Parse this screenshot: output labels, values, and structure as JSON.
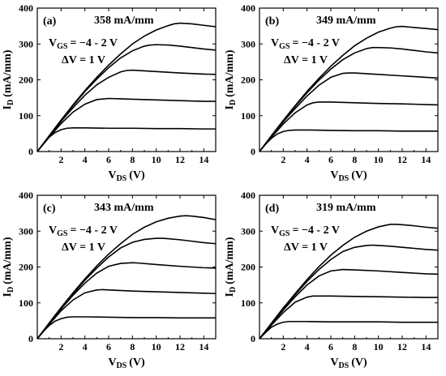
{
  "chart_data": [
    {
      "type": "line",
      "label": "(a)",
      "peak_label": "358 mA/mm",
      "vgs_label": "−4 - 2 V",
      "dv_label": "ΔV = 1 V",
      "xlabel_main": "V",
      "xlabel_sub": "DS",
      "xlabel_unit": "(V)",
      "ylabel_main": "I",
      "ylabel_sub": "D",
      "ylabel_unit": "(mA/mm)",
      "xlim": [
        0,
        15
      ],
      "ylim": [
        0,
        400
      ],
      "xticks": [
        "2",
        "4",
        "6",
        "8",
        "10",
        "12",
        "14"
      ],
      "yticks": [
        "0",
        "100",
        "200",
        "300",
        "400"
      ],
      "series": [
        {
          "x": [
            0,
            0.5,
            1,
            1.5,
            2,
            2.5,
            3,
            4,
            6,
            8,
            10,
            12,
            14,
            15
          ],
          "values": [
            0,
            22,
            40,
            53,
            61,
            65,
            66,
            66,
            65,
            65,
            64,
            64,
            63,
            63
          ]
        },
        {
          "x": [
            0,
            1,
            2,
            3,
            4,
            5,
            6,
            7,
            8,
            10,
            12,
            14,
            15
          ],
          "values": [
            0,
            40,
            78,
            110,
            132,
            145,
            148,
            147,
            146,
            144,
            142,
            140,
            140
          ]
        },
        {
          "x": [
            0,
            1,
            2,
            3,
            4,
            5,
            6,
            7,
            7.5,
            8,
            9,
            10,
            12,
            14,
            15
          ],
          "values": [
            0,
            42,
            84,
            122,
            157,
            186,
            207,
            222,
            226,
            227,
            225,
            223,
            219,
            216,
            215
          ]
        },
        {
          "x": [
            0,
            1,
            2,
            3,
            4,
            5,
            6,
            7,
            8,
            9,
            9.5,
            10,
            11,
            12,
            13,
            14,
            15
          ],
          "values": [
            0,
            43,
            87,
            128,
            167,
            202,
            234,
            261,
            281,
            294,
            297,
            298,
            297,
            294,
            290,
            286,
            283
          ]
        },
        {
          "x": [
            0,
            1,
            2,
            3,
            4,
            5,
            6,
            7,
            8,
            9,
            10,
            11,
            11.5,
            12,
            13,
            14,
            15
          ],
          "values": [
            0,
            44,
            88,
            130,
            170,
            207,
            241,
            272,
            300,
            322,
            339,
            351,
            356,
            358,
            356,
            352,
            348
          ]
        }
      ]
    },
    {
      "type": "line",
      "label": "(b)",
      "peak_label": "349 mA/mm",
      "vgs_label": "−4 - 2 V",
      "dv_label": "ΔV = 1 V",
      "xlabel_main": "V",
      "xlabel_sub": "DS",
      "xlabel_unit": "(V)",
      "ylabel_main": "I",
      "ylabel_sub": "D",
      "ylabel_unit": "(mA/mm)",
      "xlim": [
        0,
        15
      ],
      "ylim": [
        0,
        400
      ],
      "xticks": [
        "2",
        "4",
        "6",
        "8",
        "10",
        "12",
        "14"
      ],
      "yticks": [
        "0",
        "100",
        "200",
        "300",
        "400"
      ],
      "series": [
        {
          "x": [
            0,
            0.5,
            1,
            1.5,
            2,
            2.5,
            3,
            4,
            6,
            8,
            10,
            12,
            14,
            15
          ],
          "values": [
            0,
            20,
            37,
            49,
            56,
            59,
            60,
            60,
            59,
            58,
            58,
            57,
            57,
            57
          ]
        },
        {
          "x": [
            0,
            1,
            2,
            3,
            4,
            4.5,
            5,
            6,
            8,
            10,
            12,
            14,
            15
          ],
          "values": [
            0,
            40,
            77,
            108,
            130,
            136,
            138,
            138,
            136,
            134,
            133,
            131,
            130
          ]
        },
        {
          "x": [
            0,
            1,
            2,
            3,
            4,
            5,
            6,
            7,
            7.5,
            8,
            10,
            12,
            14,
            15
          ],
          "values": [
            0,
            42,
            83,
            120,
            155,
            185,
            207,
            218,
            219,
            219,
            215,
            211,
            207,
            205
          ]
        },
        {
          "x": [
            0,
            1,
            2,
            3,
            4,
            5,
            6,
            7,
            8,
            9,
            9.5,
            10,
            11,
            12,
            13,
            14,
            15
          ],
          "values": [
            0,
            43,
            86,
            126,
            164,
            199,
            230,
            256,
            275,
            287,
            290,
            290,
            289,
            286,
            282,
            278,
            275
          ]
        },
        {
          "x": [
            0,
            1,
            2,
            3,
            4,
            5,
            6,
            7,
            8,
            9,
            10,
            11,
            11.5,
            12,
            13,
            14,
            15
          ],
          "values": [
            0,
            44,
            87,
            128,
            168,
            204,
            238,
            268,
            295,
            316,
            333,
            344,
            348,
            349,
            346,
            343,
            340
          ]
        }
      ]
    },
    {
      "type": "line",
      "label": "(c)",
      "peak_label": "343 mA/mm",
      "vgs_label": "−4 - 2 V",
      "dv_label": "ΔV = 1 V",
      "xlabel_main": "V",
      "xlabel_sub": "DS",
      "xlabel_unit": "(V)",
      "ylabel_main": "I",
      "ylabel_sub": "D",
      "ylabel_unit": "(mA/mm)",
      "xlim": [
        0,
        15
      ],
      "ylim": [
        0,
        400
      ],
      "xticks": [
        "2",
        "4",
        "6",
        "8",
        "10",
        "12",
        "14"
      ],
      "yticks": [
        "0",
        "100",
        "200",
        "300",
        "400"
      ],
      "series": [
        {
          "x": [
            0,
            0.5,
            1,
            1.5,
            2,
            2.5,
            3,
            4,
            6,
            8,
            10,
            12,
            14,
            15
          ],
          "values": [
            0,
            20,
            37,
            49,
            56,
            60,
            61,
            61,
            60,
            59,
            59,
            58,
            58,
            58
          ]
        },
        {
          "x": [
            0,
            1,
            2,
            3,
            4,
            5,
            5.5,
            6,
            8,
            10,
            12,
            14,
            15
          ],
          "values": [
            0,
            40,
            78,
            108,
            128,
            136,
            137,
            136,
            133,
            131,
            129,
            127,
            126
          ]
        },
        {
          "x": [
            0,
            1,
            2,
            3,
            4,
            5,
            6,
            7,
            8,
            8.5,
            10,
            12,
            14,
            15
          ],
          "values": [
            0,
            42,
            83,
            121,
            155,
            183,
            202,
            210,
            212,
            211,
            207,
            202,
            198,
            197
          ]
        },
        {
          "x": [
            0,
            1,
            2,
            3,
            4,
            5,
            6,
            7,
            8,
            9,
            10,
            10.5,
            11,
            12,
            13,
            14,
            15
          ],
          "values": [
            0,
            43,
            85,
            125,
            163,
            197,
            228,
            253,
            269,
            277,
            280,
            280,
            279,
            276,
            272,
            268,
            265
          ]
        },
        {
          "x": [
            0,
            1,
            2,
            3,
            4,
            5,
            6,
            7,
            8,
            9,
            10,
            11,
            12,
            12.5,
            13,
            14,
            15
          ],
          "values": [
            0,
            44,
            87,
            128,
            167,
            203,
            236,
            265,
            291,
            311,
            326,
            336,
            342,
            343,
            342,
            338,
            332
          ]
        }
      ]
    },
    {
      "type": "line",
      "label": "(d)",
      "peak_label": "319 mA/mm",
      "vgs_label": "−4 - 2 V",
      "dv_label": "ΔV = 1 V",
      "xlabel_main": "V",
      "xlabel_sub": "DS",
      "xlabel_unit": "(V)",
      "ylabel_main": "I",
      "ylabel_sub": "D",
      "ylabel_unit": "(mA/mm)",
      "xlim": [
        0,
        15
      ],
      "ylim": [
        0,
        400
      ],
      "xticks": [
        "2",
        "4",
        "6",
        "8",
        "10",
        "12",
        "14"
      ],
      "yticks": [
        "0",
        "100",
        "200",
        "300",
        "400"
      ],
      "series": [
        {
          "x": [
            0,
            0.5,
            1,
            1.5,
            2,
            2.5,
            3,
            4,
            6,
            8,
            10,
            12,
            14,
            15
          ],
          "values": [
            0,
            17,
            32,
            41,
            46,
            48,
            48,
            48,
            47,
            47,
            47,
            46,
            46,
            46
          ]
        },
        {
          "x": [
            0,
            1,
            2,
            3,
            4,
            4.5,
            5,
            6,
            8,
            10,
            12,
            14,
            15
          ],
          "values": [
            0,
            38,
            73,
            102,
            116,
            119,
            119,
            119,
            118,
            117,
            116,
            115,
            115
          ]
        },
        {
          "x": [
            0,
            1,
            2,
            3,
            4,
            5,
            6,
            7,
            8,
            10,
            12,
            14,
            15
          ],
          "values": [
            0,
            41,
            80,
            117,
            150,
            175,
            189,
            193,
            192,
            189,
            185,
            181,
            180
          ]
        },
        {
          "x": [
            0,
            1,
            2,
            3,
            4,
            5,
            6,
            7,
            8,
            9,
            9.5,
            10,
            11,
            12,
            13,
            14,
            15
          ],
          "values": [
            0,
            42,
            84,
            123,
            160,
            193,
            221,
            243,
            255,
            260,
            261,
            260,
            258,
            255,
            252,
            249,
            247
          ]
        },
        {
          "x": [
            0,
            1,
            2,
            3,
            4,
            5,
            6,
            7,
            8,
            9,
            10,
            11,
            11.5,
            12,
            13,
            14,
            15
          ],
          "values": [
            0,
            43,
            86,
            126,
            165,
            201,
            233,
            260,
            283,
            300,
            312,
            319,
            319,
            318,
            315,
            311,
            308
          ]
        }
      ]
    }
  ]
}
